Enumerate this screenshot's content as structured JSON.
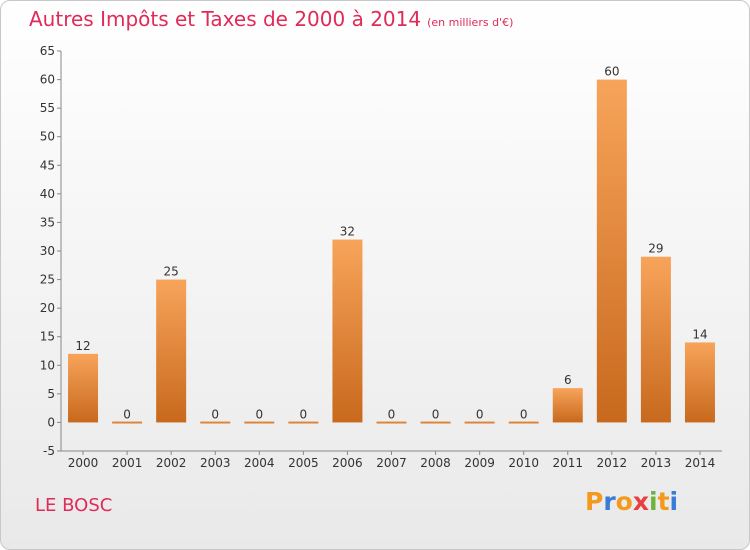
{
  "title": "Autres Impôts et Taxes de 2000 à 2014",
  "subtitle": "(en milliers d'€)",
  "commune": "LE BOSC",
  "logo": {
    "letters": [
      "P",
      "r",
      "o",
      "x",
      "i",
      "t",
      "i"
    ],
    "colors": [
      "#f39a1e",
      "#3a7bd5",
      "#f39a1e",
      "#e84040",
      "#6cb33f",
      "#f39a1e",
      "#3a7bd5"
    ]
  },
  "colors": {
    "bar_light": "#f7a45a",
    "bar_dark": "#c8691d",
    "title": "#e02a57",
    "axis": "#888888",
    "text": "#333333"
  },
  "chart_data": {
    "type": "bar",
    "categories": [
      "2000",
      "2001",
      "2002",
      "2003",
      "2004",
      "2005",
      "2006",
      "2007",
      "2008",
      "2009",
      "2010",
      "2011",
      "2012",
      "2013",
      "2014"
    ],
    "values": [
      12,
      0,
      25,
      0,
      0,
      0,
      32,
      0,
      0,
      0,
      0,
      6,
      60,
      29,
      14
    ],
    "data_labels": [
      "12",
      "0",
      "25",
      "0",
      "0",
      "0",
      "32",
      "0",
      "0",
      "0",
      "0",
      "6",
      "60",
      "29",
      "14"
    ],
    "yticks": [
      -5,
      0,
      5,
      10,
      15,
      20,
      25,
      30,
      35,
      40,
      45,
      50,
      55,
      60,
      65
    ],
    "ylim": [
      -5,
      65
    ],
    "grid": false,
    "legend": "none"
  }
}
